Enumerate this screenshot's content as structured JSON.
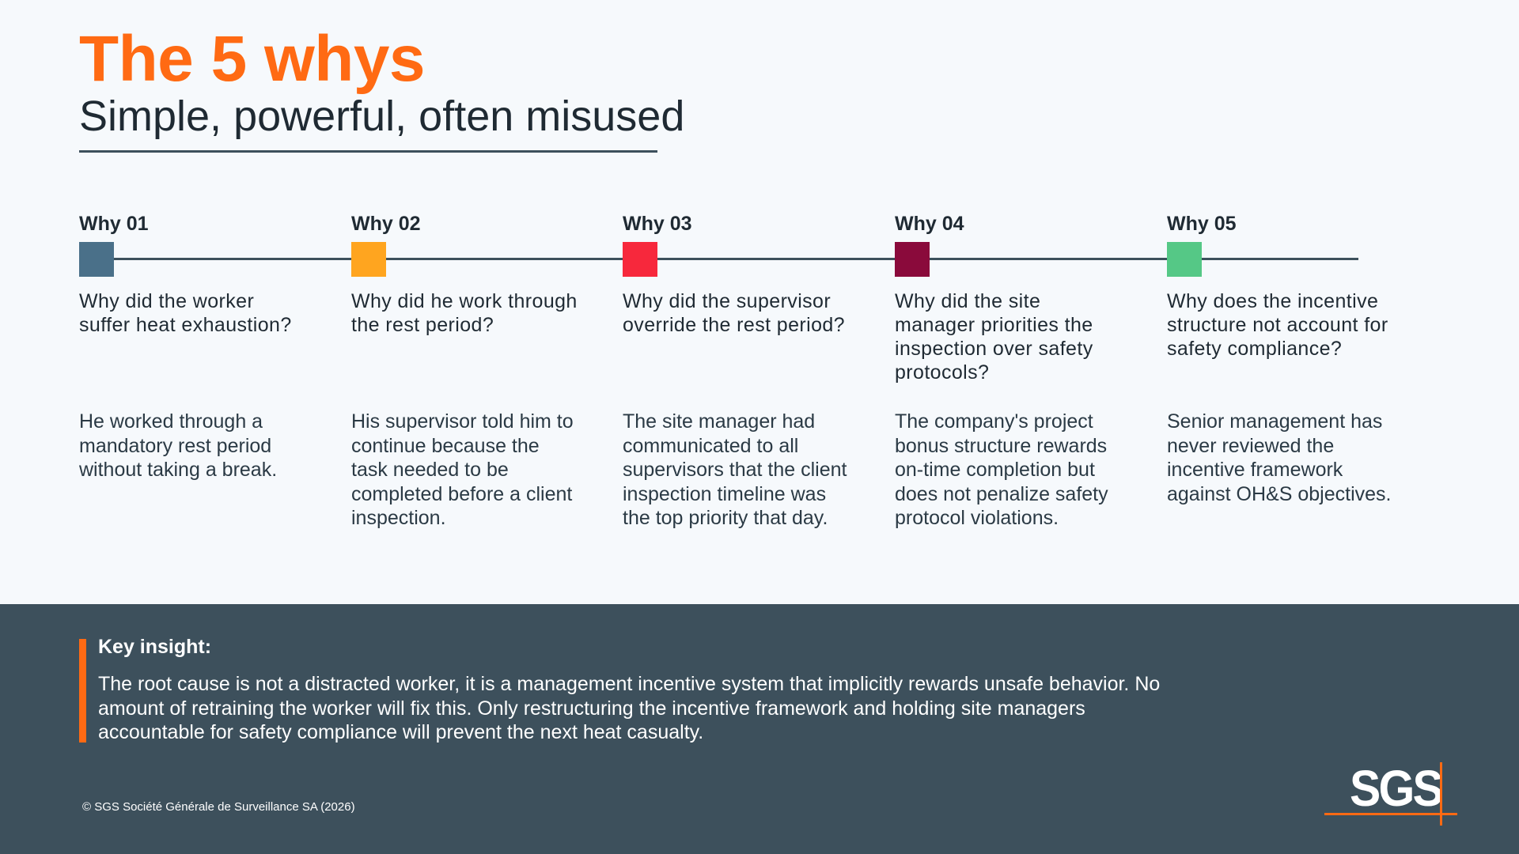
{
  "header": {
    "title": "The 5 whys",
    "subtitle": "Simple, powerful, often misused"
  },
  "whys": [
    {
      "label": "Why 01",
      "color": "#4a7089",
      "question": "Why did the worker suffer heat exhaustion?",
      "answer": "He worked through a mandatory rest period without taking a break."
    },
    {
      "label": "Why 02",
      "color": "#ffa51f",
      "question": "Why did he work through the rest period?",
      "answer": "His supervisor told him to continue because the task needed to be completed before a client inspection."
    },
    {
      "label": "Why 03",
      "color": "#f7283c",
      "question": "Why did the supervisor override the rest period?",
      "answer": "The site manager had communicated to all supervisors that the client inspection timeline was the top priority that day."
    },
    {
      "label": "Why 04",
      "color": "#8a0a3b",
      "question": "Why did the site manager priorities the inspection over safety protocols?",
      "answer": "The company's project bonus structure rewards on-time completion but does not penalize safety protocol violations."
    },
    {
      "label": "Why 05",
      "color": "#55c886",
      "question": "Why does the incentive structure not account for safety compliance?",
      "answer": "Senior management has never reviewed the incentive framework against OH&S objectives."
    }
  ],
  "insight": {
    "title": "Key insight:",
    "body": "The root cause is not a distracted worker, it is a management incentive system that implicitly rewards unsafe behavior. No amount of retraining the worker will fix this. Only restructuring the incentive framework and holding site managers accountable for safety compliance will prevent the next heat casualty."
  },
  "footer": {
    "copyright": "© SGS Société Générale de Surveillance SA (2026)",
    "logo_text": "SGS"
  },
  "colors": {
    "accent": "#ff6a13",
    "band": "#3d505c",
    "background": "#f6f9fc"
  }
}
